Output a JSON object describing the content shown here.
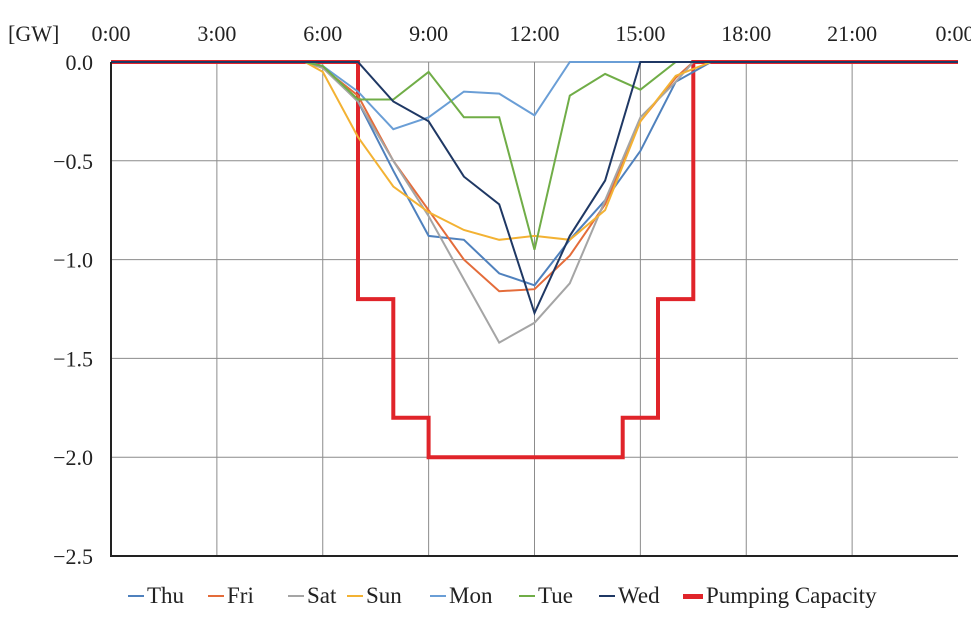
{
  "chart_data": {
    "type": "line",
    "unit_label": "[GW]",
    "x_tick_labels": [
      "0:00",
      "3:00",
      "6:00",
      "9:00",
      "12:00",
      "15:00",
      "18:00",
      "21:00",
      "0:00"
    ],
    "y_tick_labels": [
      "0.0",
      "−0.5",
      "−1.0",
      "−1.5",
      "−2.0",
      "−2.5"
    ],
    "xlim": [
      0,
      24
    ],
    "ylim": [
      -2.5,
      0
    ],
    "x_ticks": [
      0,
      3,
      6,
      9,
      12,
      15,
      18,
      21,
      24
    ],
    "y_ticks": [
      0,
      -0.5,
      -1.0,
      -1.5,
      -2.0,
      -2.5
    ],
    "grid": true,
    "legend_position": "bottom",
    "series": [
      {
        "name": "Thu",
        "color": "#4f81bd",
        "width": 2,
        "x": [
          0,
          5.5,
          6,
          7,
          8,
          9,
          10,
          11,
          12,
          13,
          14,
          15,
          16,
          17,
          18,
          24
        ],
        "y": [
          0,
          0,
          -0.02,
          -0.2,
          -0.55,
          -0.88,
          -0.9,
          -1.07,
          -1.13,
          -0.9,
          -0.7,
          -0.45,
          -0.1,
          0,
          0,
          0
        ]
      },
      {
        "name": "Fri",
        "color": "#e46c3a",
        "width": 2,
        "x": [
          0,
          5.5,
          6,
          7,
          8,
          9,
          10,
          11,
          12,
          13,
          14,
          15,
          16,
          16.5,
          24
        ],
        "y": [
          0,
          0,
          -0.03,
          -0.17,
          -0.5,
          -0.75,
          -1.0,
          -1.16,
          -1.15,
          -0.98,
          -0.72,
          -0.3,
          -0.08,
          0,
          0
        ]
      },
      {
        "name": "Sat",
        "color": "#a5a5a5",
        "width": 2,
        "x": [
          0,
          5.5,
          6,
          7,
          8,
          9,
          10,
          11,
          12,
          13,
          14,
          15,
          16,
          16.5,
          24
        ],
        "y": [
          0,
          0,
          -0.03,
          -0.2,
          -0.5,
          -0.78,
          -1.1,
          -1.42,
          -1.32,
          -1.12,
          -0.7,
          -0.28,
          -0.1,
          0,
          0
        ]
      },
      {
        "name": "Sun",
        "color": "#f3b233",
        "width": 2,
        "x": [
          0,
          5.5,
          6,
          7,
          8,
          9,
          10,
          11,
          12,
          13,
          14,
          15,
          16,
          17,
          24
        ],
        "y": [
          0,
          0,
          -0.05,
          -0.38,
          -0.63,
          -0.76,
          -0.85,
          -0.9,
          -0.88,
          -0.9,
          -0.75,
          -0.3,
          -0.07,
          0,
          0
        ]
      },
      {
        "name": "Mon",
        "color": "#6a9ed6",
        "width": 2,
        "x": [
          0,
          5.5,
          6,
          7,
          8,
          9,
          10,
          11,
          12,
          13,
          24
        ],
        "y": [
          0,
          0,
          -0.02,
          -0.15,
          -0.34,
          -0.28,
          -0.15,
          -0.16,
          -0.27,
          0,
          0
        ]
      },
      {
        "name": "Tue",
        "color": "#70ad47",
        "width": 2,
        "x": [
          0,
          5.5,
          6,
          7,
          8,
          9,
          10,
          11,
          12,
          13,
          14,
          15,
          16,
          24
        ],
        "y": [
          0,
          0,
          -0.02,
          -0.19,
          -0.19,
          -0.05,
          -0.28,
          -0.28,
          -0.95,
          -0.17,
          -0.06,
          -0.14,
          0,
          0
        ]
      },
      {
        "name": "Wed",
        "color": "#1f3864",
        "width": 2,
        "x": [
          0,
          7,
          8,
          9,
          10,
          11,
          12,
          13,
          14,
          15,
          24
        ],
        "y": [
          0,
          0,
          -0.2,
          -0.3,
          -0.58,
          -0.72,
          -1.27,
          -0.88,
          -0.6,
          0,
          0
        ]
      },
      {
        "name": "Pumping Capacity",
        "color": "#e0242a",
        "width": 4,
        "x": [
          0,
          7,
          7,
          8,
          8,
          9,
          9,
          14.5,
          14.5,
          15.5,
          15.5,
          16.5,
          16.5,
          24
        ],
        "y": [
          0,
          0,
          -1.2,
          -1.2,
          -1.8,
          -1.8,
          -2.0,
          -2.0,
          -1.8,
          -1.8,
          -1.2,
          -1.2,
          0,
          0
        ]
      }
    ]
  }
}
